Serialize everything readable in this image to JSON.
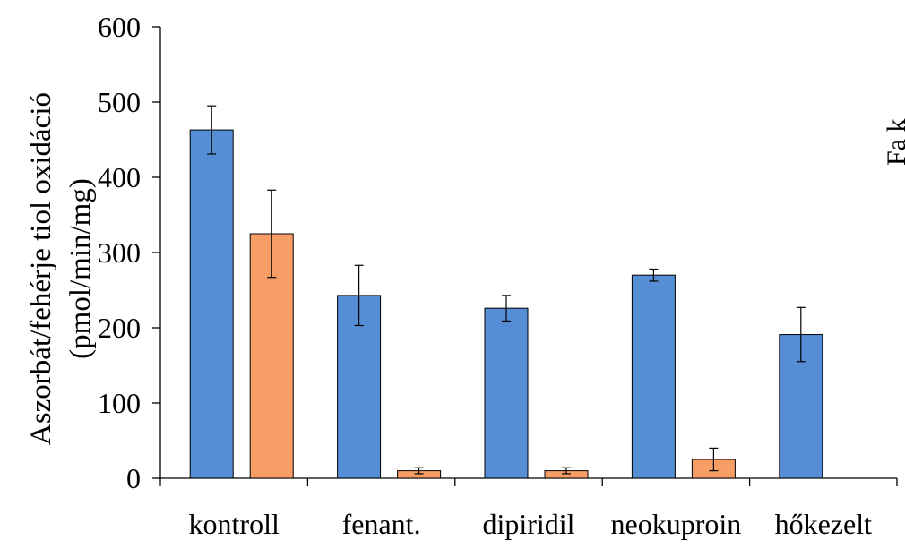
{
  "chart_data": {
    "type": "bar",
    "title": "",
    "xlabel": "",
    "ylabel_lines": [
      "Aszorbát/fehérje tiol oxidáció",
      "(pmol/min/mg)"
    ],
    "ylim": [
      0,
      600
    ],
    "yticks": [
      0,
      100,
      200,
      300,
      400,
      500,
      600
    ],
    "categories": [
      "kontroll",
      "fenant.",
      "dipiridil",
      "neokuproin",
      "hőkezelt"
    ],
    "series": [
      {
        "color": "#558ED5",
        "values": [
          463,
          243,
          226,
          270,
          191
        ],
        "errors": [
          32,
          40,
          17,
          8,
          36
        ]
      },
      {
        "color": "#F79E66",
        "values": [
          325,
          10,
          10,
          25,
          null
        ],
        "errors": [
          58,
          4,
          4,
          15,
          null
        ]
      }
    ],
    "grid": false,
    "legend": "none",
    "cut_off_text": "Fa k "
  }
}
